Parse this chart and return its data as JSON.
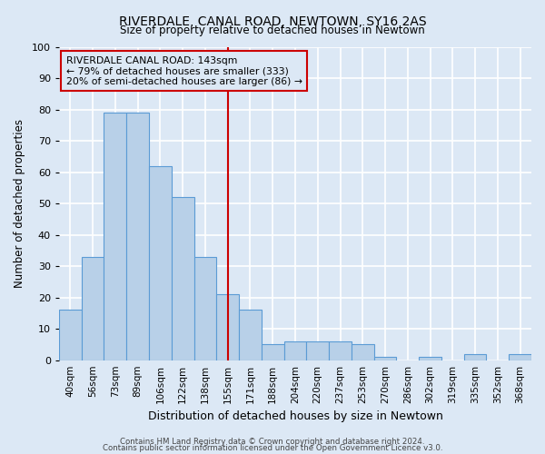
{
  "title": "RIVERDALE, CANAL ROAD, NEWTOWN, SY16 2AS",
  "subtitle": "Size of property relative to detached houses in Newtown",
  "xlabel": "Distribution of detached houses by size in Newtown",
  "ylabel": "Number of detached properties",
  "bar_labels": [
    "40sqm",
    "56sqm",
    "73sqm",
    "89sqm",
    "106sqm",
    "122sqm",
    "138sqm",
    "155sqm",
    "171sqm",
    "188sqm",
    "204sqm",
    "220sqm",
    "237sqm",
    "253sqm",
    "270sqm",
    "286sqm",
    "302sqm",
    "319sqm",
    "335sqm",
    "352sqm",
    "368sqm"
  ],
  "bar_values": [
    16,
    33,
    79,
    79,
    62,
    52,
    33,
    21,
    16,
    5,
    6,
    6,
    6,
    5,
    1,
    0,
    1,
    0,
    2,
    0,
    2
  ],
  "bar_color": "#b8d0e8",
  "bar_edge_color": "#5b9bd5",
  "bg_color": "#dce8f5",
  "grid_color": "#ffffff",
  "ylim": [
    0,
    100
  ],
  "vline_x": 7.0,
  "vline_color": "#cc0000",
  "annotation_title": "RIVERDALE CANAL ROAD: 143sqm",
  "annotation_line1": "← 79% of detached houses are smaller (333)",
  "annotation_line2": "20% of semi-detached houses are larger (86) →",
  "annotation_box_color": "#cc0000",
  "footer1": "Contains HM Land Registry data © Crown copyright and database right 2024.",
  "footer2": "Contains public sector information licensed under the Open Government Licence v3.0."
}
